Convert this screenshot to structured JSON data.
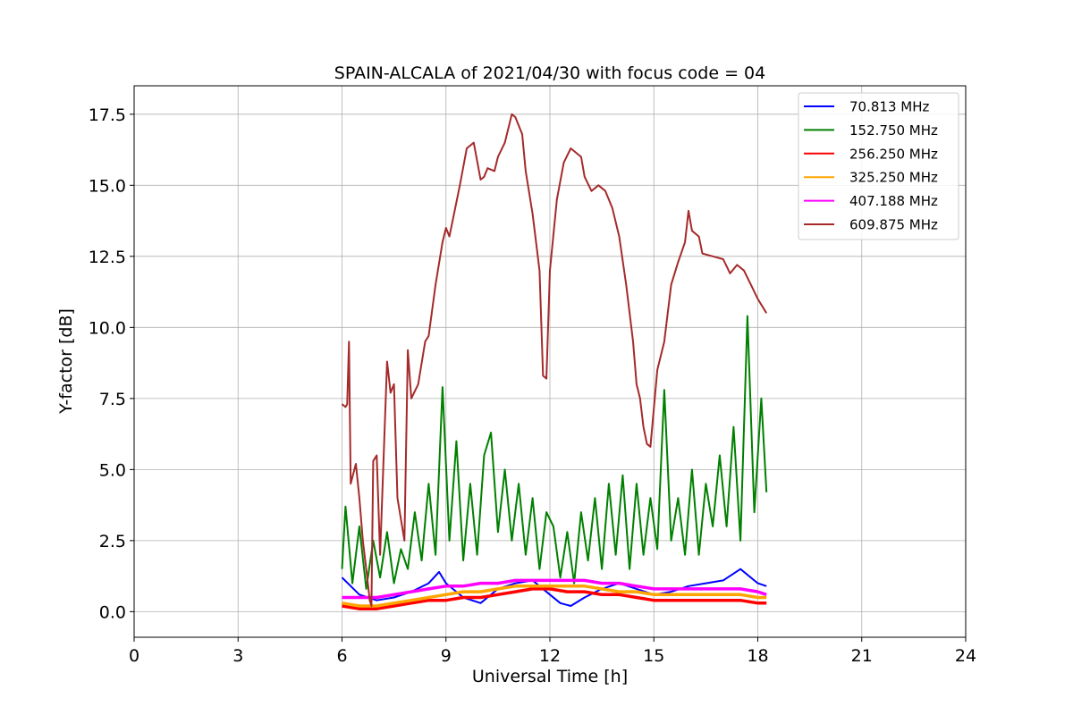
{
  "chart_data": {
    "type": "line",
    "title": "SPAIN-ALCALA of 2021/04/30 with focus code = 04",
    "xlabel": "Universal Time [h]",
    "ylabel": "Y-factor [dB]",
    "xlim": [
      0,
      24
    ],
    "ylim": [
      -0.9,
      18.5
    ],
    "xticks": [
      0,
      3,
      6,
      9,
      12,
      15,
      18,
      21,
      24
    ],
    "xtick_labels": [
      "0",
      "3",
      "6",
      "9",
      "12",
      "15",
      "18",
      "21",
      "24"
    ],
    "yticks": [
      0.0,
      2.5,
      5.0,
      7.5,
      10.0,
      12.5,
      15.0,
      17.5
    ],
    "ytick_labels": [
      "0.0",
      "2.5",
      "5.0",
      "7.5",
      "10.0",
      "12.5",
      "15.0",
      "17.5"
    ],
    "grid": true,
    "legend_position": "top-right",
    "series": [
      {
        "name": " 70.813 MHz",
        "color": "#0000ff",
        "x": [
          6.0,
          6.5,
          7.0,
          7.5,
          8.0,
          8.5,
          8.8,
          9.0,
          9.5,
          10.0,
          10.5,
          11.0,
          11.5,
          12.0,
          12.3,
          12.6,
          13.0,
          13.5,
          14.0,
          14.5,
          15.0,
          15.5,
          16.0,
          16.5,
          17.0,
          17.5,
          18.0,
          18.25
        ],
        "y": [
          1.2,
          0.6,
          0.4,
          0.5,
          0.7,
          1.0,
          1.4,
          1.0,
          0.5,
          0.3,
          0.8,
          1.0,
          1.1,
          0.6,
          0.3,
          0.2,
          0.5,
          0.8,
          1.0,
          0.8,
          0.6,
          0.7,
          0.9,
          1.0,
          1.1,
          1.5,
          1.0,
          0.9
        ]
      },
      {
        "name": "152.750 MHz",
        "color": "#008000",
        "x": [
          6.0,
          6.1,
          6.3,
          6.5,
          6.7,
          6.9,
          7.1,
          7.3,
          7.5,
          7.7,
          7.9,
          8.1,
          8.3,
          8.5,
          8.7,
          8.9,
          9.1,
          9.3,
          9.5,
          9.7,
          9.9,
          10.1,
          10.3,
          10.5,
          10.7,
          10.9,
          11.1,
          11.3,
          11.5,
          11.7,
          11.9,
          12.1,
          12.3,
          12.5,
          12.7,
          12.9,
          13.1,
          13.3,
          13.5,
          13.7,
          13.9,
          14.1,
          14.3,
          14.5,
          14.7,
          14.9,
          15.1,
          15.3,
          15.5,
          15.7,
          15.9,
          16.1,
          16.3,
          16.5,
          16.7,
          16.9,
          17.1,
          17.3,
          17.5,
          17.7,
          17.9,
          18.1,
          18.25
        ],
        "y": [
          1.5,
          3.7,
          1.0,
          3.0,
          0.8,
          2.5,
          1.2,
          2.8,
          1.0,
          2.2,
          1.5,
          3.5,
          1.8,
          4.5,
          2.0,
          7.9,
          2.5,
          6.0,
          1.8,
          4.5,
          2.0,
          5.5,
          6.3,
          2.8,
          5.0,
          2.5,
          4.5,
          2.0,
          4.0,
          1.5,
          3.5,
          3.0,
          1.2,
          2.8,
          1.0,
          3.5,
          1.8,
          4.0,
          1.5,
          4.5,
          2.0,
          4.8,
          1.5,
          4.5,
          2.0,
          4.0,
          2.2,
          7.8,
          2.5,
          4.0,
          2.0,
          5.0,
          2.0,
          4.5,
          3.0,
          5.5,
          3.0,
          6.5,
          2.5,
          10.4,
          3.5,
          7.5,
          4.2
        ]
      },
      {
        "name": "256.250 MHz",
        "color": "#ff0000",
        "x": [
          6.0,
          6.5,
          7.0,
          7.5,
          8.0,
          8.5,
          9.0,
          9.5,
          10.0,
          10.5,
          11.0,
          11.5,
          12.0,
          12.5,
          13.0,
          13.5,
          14.0,
          14.5,
          15.0,
          15.5,
          16.0,
          16.5,
          17.0,
          17.5,
          18.0,
          18.25
        ],
        "y": [
          0.2,
          0.1,
          0.1,
          0.2,
          0.3,
          0.4,
          0.4,
          0.5,
          0.5,
          0.6,
          0.7,
          0.8,
          0.8,
          0.7,
          0.7,
          0.6,
          0.6,
          0.5,
          0.4,
          0.4,
          0.4,
          0.4,
          0.4,
          0.4,
          0.3,
          0.3
        ]
      },
      {
        "name": "325.250 MHz",
        "color": "#ffa500",
        "x": [
          6.0,
          6.5,
          7.0,
          7.5,
          8.0,
          8.5,
          9.0,
          9.5,
          10.0,
          10.5,
          11.0,
          11.5,
          12.0,
          12.5,
          13.0,
          13.5,
          14.0,
          14.5,
          15.0,
          15.5,
          16.0,
          16.5,
          17.0,
          17.5,
          18.0,
          18.25
        ],
        "y": [
          0.3,
          0.2,
          0.2,
          0.3,
          0.4,
          0.5,
          0.6,
          0.7,
          0.7,
          0.8,
          0.9,
          0.9,
          0.9,
          0.9,
          0.9,
          0.8,
          0.7,
          0.7,
          0.6,
          0.6,
          0.6,
          0.6,
          0.6,
          0.6,
          0.5,
          0.5
        ]
      },
      {
        "name": "407.188 MHz",
        "color": "#ff00ff",
        "x": [
          6.0,
          6.5,
          7.0,
          7.5,
          8.0,
          8.5,
          9.0,
          9.5,
          10.0,
          10.5,
          11.0,
          11.5,
          12.0,
          12.5,
          13.0,
          13.5,
          14.0,
          14.5,
          15.0,
          15.5,
          16.0,
          16.5,
          17.0,
          17.5,
          18.0,
          18.25
        ],
        "y": [
          0.5,
          0.5,
          0.5,
          0.6,
          0.7,
          0.8,
          0.9,
          0.9,
          1.0,
          1.0,
          1.1,
          1.1,
          1.1,
          1.1,
          1.1,
          1.0,
          1.0,
          0.9,
          0.8,
          0.8,
          0.8,
          0.8,
          0.8,
          0.8,
          0.7,
          0.6
        ]
      },
      {
        "name": "609.875 MHz",
        "color": "#a52a2a",
        "x": [
          6.0,
          6.1,
          6.15,
          6.2,
          6.25,
          6.4,
          6.5,
          6.6,
          6.7,
          6.8,
          6.85,
          6.9,
          7.0,
          7.1,
          7.3,
          7.4,
          7.5,
          7.6,
          7.8,
          7.9,
          8.0,
          8.2,
          8.4,
          8.5,
          8.7,
          8.9,
          9.0,
          9.1,
          9.2,
          9.4,
          9.6,
          9.8,
          10.0,
          10.1,
          10.2,
          10.4,
          10.5,
          10.7,
          10.9,
          11.0,
          11.2,
          11.3,
          11.5,
          11.7,
          11.8,
          11.9,
          12.0,
          12.2,
          12.4,
          12.6,
          12.9,
          13.0,
          13.2,
          13.4,
          13.6,
          13.8,
          14.0,
          14.2,
          14.4,
          14.5,
          14.6,
          14.7,
          14.8,
          14.9,
          15.1,
          15.3,
          15.5,
          15.7,
          15.9,
          16.0,
          16.1,
          16.3,
          16.4,
          16.7,
          17.0,
          17.2,
          17.4,
          17.6,
          17.8,
          18.0,
          18.2,
          18.25
        ],
        "y": [
          7.3,
          7.2,
          7.3,
          9.5,
          4.5,
          5.2,
          4.0,
          2.5,
          1.5,
          0.4,
          0.2,
          5.3,
          5.5,
          2.0,
          8.8,
          7.7,
          8.0,
          4.0,
          2.5,
          9.2,
          7.5,
          8.0,
          9.5,
          9.7,
          11.5,
          13.0,
          13.5,
          13.2,
          13.8,
          15.0,
          16.3,
          16.5,
          15.2,
          15.3,
          15.6,
          15.5,
          16.0,
          16.5,
          17.5,
          17.4,
          16.8,
          15.5,
          14.0,
          12.0,
          8.3,
          8.2,
          12.0,
          14.5,
          15.8,
          16.3,
          16.0,
          15.3,
          14.8,
          15.0,
          14.8,
          14.2,
          13.2,
          11.5,
          9.5,
          8.0,
          7.5,
          6.5,
          5.9,
          5.8,
          8.5,
          9.5,
          11.5,
          12.3,
          13.0,
          14.1,
          13.4,
          13.2,
          12.6,
          12.5,
          12.4,
          11.9,
          12.2,
          12.0,
          11.5,
          11.0,
          10.6,
          10.5
        ]
      }
    ]
  }
}
